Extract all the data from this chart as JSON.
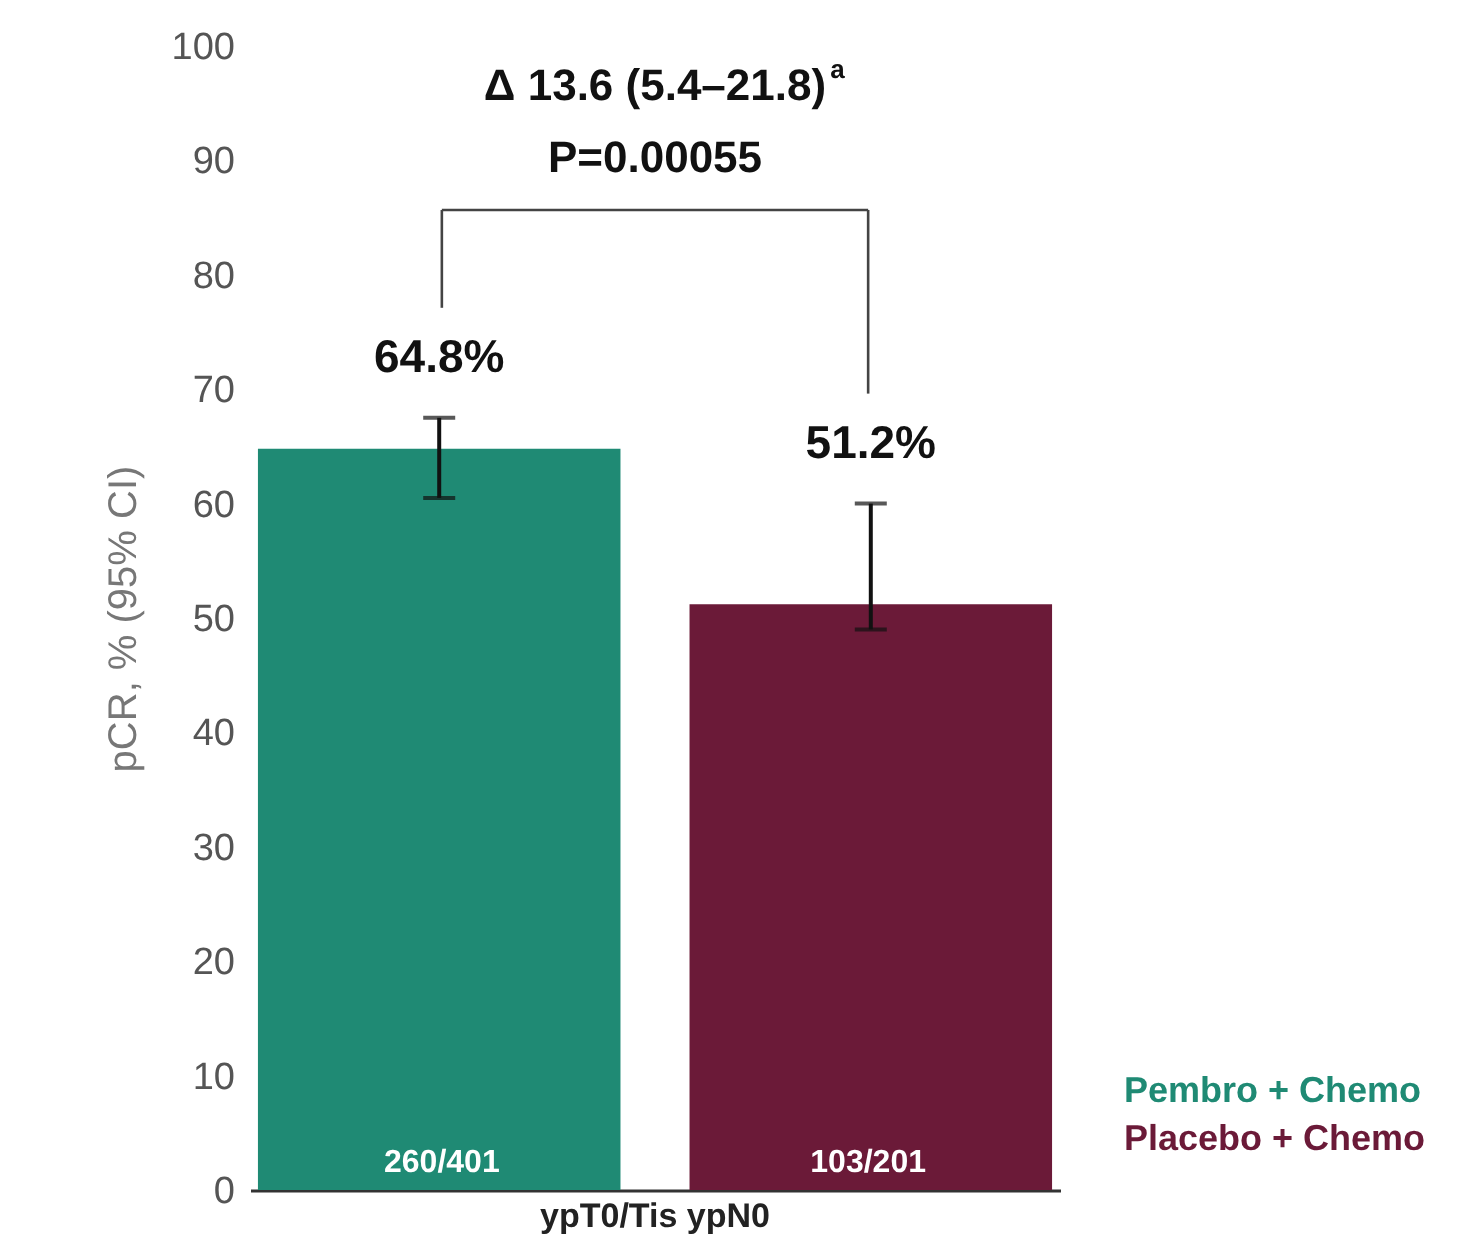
{
  "chart_data": {
    "type": "bar",
    "categories": [
      "ypT0/Tis ypN0"
    ],
    "series": [
      {
        "name": "Pembro + Chemo",
        "color": "#1f8a74",
        "values": [
          64.8
        ],
        "value_labels": [
          "64.8%"
        ],
        "errors": [
          [
            60.5,
            67.5
          ]
        ]
      },
      {
        "name": "Placebo + Chemo",
        "color": "#6b1a38",
        "values": [
          51.2
        ],
        "value_labels": [
          "51.2%"
        ],
        "errors": [
          [
            49,
            60
          ]
        ]
      }
    ],
    "ylabel": "pCR, % (95% CI)",
    "ylim": [
      0,
      100
    ],
    "yticks": [
      0,
      10,
      20,
      30,
      40,
      50,
      60,
      70,
      80,
      90,
      100
    ],
    "grid": false,
    "legend": "bottom right",
    "annotations": [
      "Δ 13.6 (5.4–21.8)$^{a}$",
      "P=0.00055",
      "260/401",
      "103/201"
    ]
  }
}
